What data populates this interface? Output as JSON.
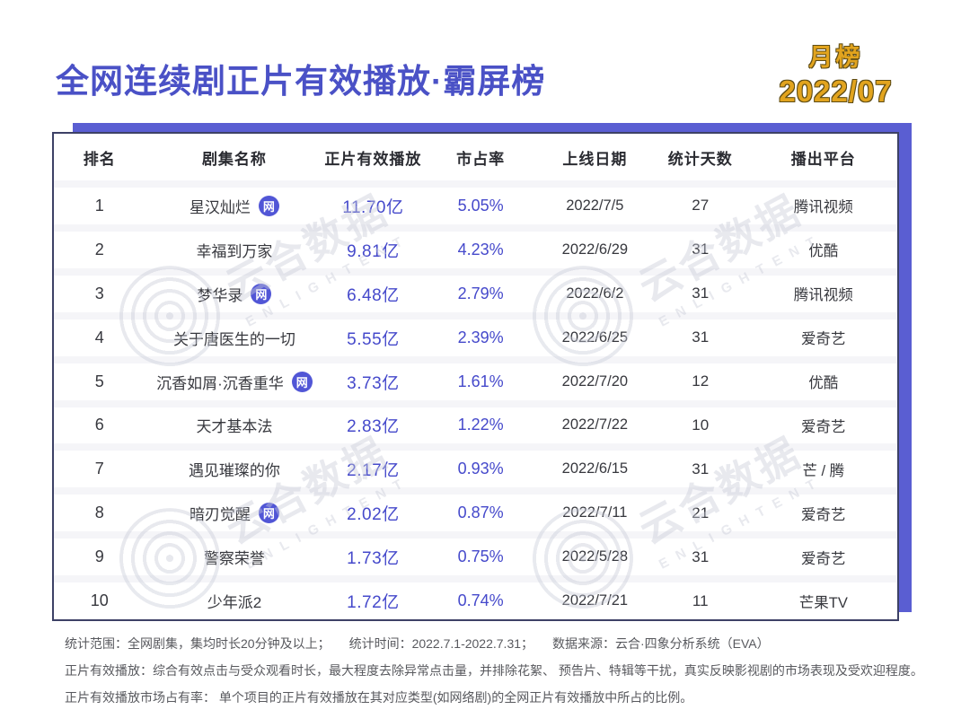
{
  "page": {
    "title": "全网连续剧正片有效播放·霸屏榜",
    "period_label": "月榜",
    "period_value": "2022/07"
  },
  "colors": {
    "accent": "#4a51c6",
    "gold": "#e2a41e",
    "band": "#5a5ed2",
    "value": "#4549cb"
  },
  "table": {
    "columns": [
      "排名",
      "剧集名称",
      "正片有效播放",
      "市占率",
      "上线日期",
      "统计天数",
      "播出平台"
    ],
    "web_icon_label": "网",
    "rows": [
      {
        "rank": "1",
        "name": "星汉灿烂",
        "web_icon": true,
        "plays": "11.70亿",
        "share": "5.05%",
        "date": "2022/7/5",
        "days": "27",
        "platform": "腾讯视频"
      },
      {
        "rank": "2",
        "name": "幸福到万家",
        "web_icon": false,
        "plays": "9.81亿",
        "share": "4.23%",
        "date": "2022/6/29",
        "days": "31",
        "platform": "优酷"
      },
      {
        "rank": "3",
        "name": "梦华录",
        "web_icon": true,
        "plays": "6.48亿",
        "share": "2.79%",
        "date": "2022/6/2",
        "days": "31",
        "platform": "腾讯视频"
      },
      {
        "rank": "4",
        "name": "关于唐医生的一切",
        "web_icon": false,
        "plays": "5.55亿",
        "share": "2.39%",
        "date": "2022/6/25",
        "days": "31",
        "platform": "爱奇艺"
      },
      {
        "rank": "5",
        "name": "沉香如屑·沉香重华",
        "web_icon": true,
        "plays": "3.73亿",
        "share": "1.61%",
        "date": "2022/7/20",
        "days": "12",
        "platform": "优酷"
      },
      {
        "rank": "6",
        "name": "天才基本法",
        "web_icon": false,
        "plays": "2.83亿",
        "share": "1.22%",
        "date": "2022/7/22",
        "days": "10",
        "platform": "爱奇艺"
      },
      {
        "rank": "7",
        "name": "遇见璀璨的你",
        "web_icon": false,
        "plays": "2.17亿",
        "share": "0.93%",
        "date": "2022/6/15",
        "days": "31",
        "platform": "芒 / 腾"
      },
      {
        "rank": "8",
        "name": "暗刃觉醒",
        "web_icon": true,
        "plays": "2.02亿",
        "share": "0.87%",
        "date": "2022/7/11",
        "days": "21",
        "platform": "爱奇艺"
      },
      {
        "rank": "9",
        "name": "警察荣誉",
        "web_icon": false,
        "plays": "1.73亿",
        "share": "0.75%",
        "date": "2022/5/28",
        "days": "31",
        "platform": "爱奇艺"
      },
      {
        "rank": "10",
        "name": "少年派2",
        "web_icon": false,
        "plays": "1.72亿",
        "share": "0.74%",
        "date": "2022/7/21",
        "days": "11",
        "platform": "芒果TV"
      }
    ]
  },
  "watermark": {
    "brand": "云合数据",
    "brand_en": "ENLIGHTENT"
  },
  "footnotes": [
    "统计范围：全网剧集，集均时长20分钟及以上；　　统计时间：2022.7.1-2022.7.31；　　数据来源：云合·四象分析系统（EVA）",
    "正片有效播放：综合有效点击与受众观看时长，最大程度去除异常点击量，并排除花絮、 预告片、特辑等干扰，真实反映影视剧的市场表现及受欢迎程度。",
    "正片有效播放市场占有率： 单个项目的正片有效播放在其对应类型(如网络剧)的全网正片有效播放中所占的比例。"
  ],
  "chart_data": {
    "type": "table",
    "title": "全网连续剧正片有效播放·霸屏榜",
    "subtitle": "月榜 2022/07",
    "columns": [
      "排名",
      "剧集名称",
      "正片有效播放",
      "市占率",
      "上线日期",
      "统计天数",
      "播出平台"
    ],
    "rows": [
      [
        "1",
        "星汉灿烂",
        "11.70亿",
        "5.05%",
        "2022/7/5",
        "27",
        "腾讯视频"
      ],
      [
        "2",
        "幸福到万家",
        "9.81亿",
        "4.23%",
        "2022/6/29",
        "31",
        "优酷"
      ],
      [
        "3",
        "梦华录",
        "6.48亿",
        "2.79%",
        "2022/6/2",
        "31",
        "腾讯视频"
      ],
      [
        "4",
        "关于唐医生的一切",
        "5.55亿",
        "2.39%",
        "2022/6/25",
        "31",
        "爱奇艺"
      ],
      [
        "5",
        "沉香如屑·沉香重华",
        "3.73亿",
        "1.61%",
        "2022/7/20",
        "12",
        "优酷"
      ],
      [
        "6",
        "天才基本法",
        "2.83亿",
        "1.22%",
        "2022/7/22",
        "10",
        "爱奇艺"
      ],
      [
        "7",
        "遇见璀璨的你",
        "2.17亿",
        "0.93%",
        "2022/6/15",
        "31",
        "芒 / 腾"
      ],
      [
        "8",
        "暗刃觉醒",
        "2.02亿",
        "0.87%",
        "2022/7/11",
        "21",
        "爱奇艺"
      ],
      [
        "9",
        "警察荣誉",
        "1.73亿",
        "0.75%",
        "2022/5/28",
        "31",
        "爱奇艺"
      ],
      [
        "10",
        "少年派2",
        "1.72亿",
        "0.74%",
        "2022/7/21",
        "11",
        "芒果TV"
      ]
    ],
    "web_drama_marked_rows": [
      1,
      3,
      5,
      8
    ],
    "plays_values_yi": [
      11.7,
      9.81,
      6.48,
      5.55,
      3.73,
      2.83,
      2.17,
      2.02,
      1.73,
      1.72
    ],
    "share_values_pct": [
      5.05,
      4.23,
      2.79,
      2.39,
      1.61,
      1.22,
      0.93,
      0.87,
      0.75,
      0.74
    ]
  }
}
